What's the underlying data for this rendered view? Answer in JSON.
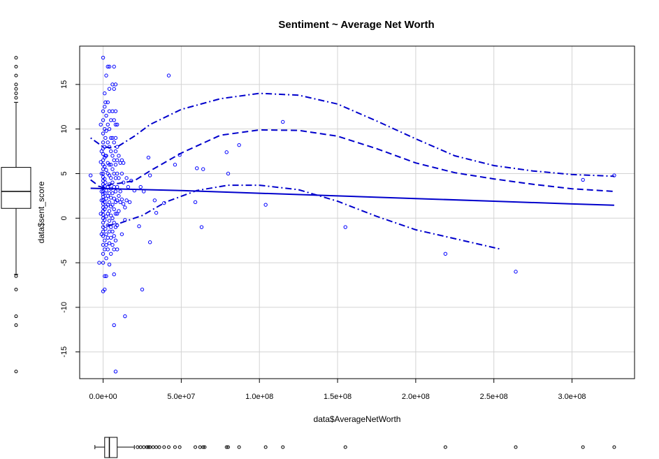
{
  "chart_data": {
    "type": "scatter",
    "title": "Sentiment ~ Average Net Worth",
    "xlabel": "data$AverageNetWorth",
    "ylabel": "data$sent_score",
    "xlim": [
      -15000000,
      340000000
    ],
    "ylim": [
      -18,
      19.3
    ],
    "grid": true,
    "x_ticks": [
      0,
      50000000,
      100000000,
      150000000,
      200000000,
      250000000,
      300000000
    ],
    "x_tick_labels": [
      "0.0e+00",
      "5.0e+07",
      "1.0e+08",
      "1.5e+08",
      "2.0e+08",
      "2.5e+08",
      "3.0e+08"
    ],
    "y_ticks": [
      -15,
      -10,
      -5,
      0,
      5,
      10,
      15
    ],
    "y_tick_labels": [
      "-15",
      "-10",
      "-5",
      "0",
      "5",
      "10",
      "15"
    ],
    "colors": {
      "points": "#0000ff",
      "lines": "#0000cc",
      "grid": "#d3d3d3",
      "box": "#000000"
    },
    "points": [
      [
        -8000000,
        4.8
      ],
      [
        -2500000,
        -5
      ],
      [
        0,
        18
      ],
      [
        0,
        12
      ],
      [
        0,
        11
      ],
      [
        0,
        9.5
      ],
      [
        0,
        8.5
      ],
      [
        0,
        7.8
      ],
      [
        0,
        7.2
      ],
      [
        0,
        6.5
      ],
      [
        0,
        6
      ],
      [
        0,
        5.5
      ],
      [
        0,
        5
      ],
      [
        0,
        4.6
      ],
      [
        0,
        4.2
      ],
      [
        0,
        3.8
      ],
      [
        0,
        3.4
      ],
      [
        0,
        3
      ],
      [
        0,
        2.7
      ],
      [
        0,
        2.4
      ],
      [
        0,
        2
      ],
      [
        0,
        1.6
      ],
      [
        0,
        1.2
      ],
      [
        0,
        0.8
      ],
      [
        0,
        0.4
      ],
      [
        0,
        0
      ],
      [
        0,
        -0.5
      ],
      [
        0,
        -1
      ],
      [
        0,
        -1.5
      ],
      [
        0,
        -2
      ],
      [
        0,
        -3
      ],
      [
        0,
        -4
      ],
      [
        0,
        -5
      ],
      [
        0,
        -8.2
      ],
      [
        -1000000,
        7.5
      ],
      [
        -1000000,
        5
      ],
      [
        -1000000,
        3
      ],
      [
        -1000000,
        2
      ],
      [
        -1000000,
        -1.8
      ],
      [
        -1500000,
        10.5
      ],
      [
        -1500000,
        6.3
      ],
      [
        -1500000,
        0.5
      ],
      [
        1000000,
        14
      ],
      [
        1000000,
        12.5
      ],
      [
        1000000,
        10
      ],
      [
        1000000,
        8
      ],
      [
        1000000,
        6.8
      ],
      [
        1000000,
        5.8
      ],
      [
        1000000,
        4.4
      ],
      [
        1000000,
        3.6
      ],
      [
        1000000,
        2.8
      ],
      [
        1000000,
        1.8
      ],
      [
        1000000,
        1
      ],
      [
        1000000,
        -0.2
      ],
      [
        1000000,
        -2.5
      ],
      [
        1000000,
        -3.5
      ],
      [
        1000000,
        -6.5
      ],
      [
        1000000,
        -8
      ],
      [
        1500000,
        13
      ],
      [
        1500000,
        9
      ],
      [
        1500000,
        7
      ],
      [
        1500000,
        4
      ],
      [
        1500000,
        -1.2
      ],
      [
        2000000,
        16
      ],
      [
        2000000,
        11.5
      ],
      [
        2000000,
        9.8
      ],
      [
        2000000,
        7
      ],
      [
        2000000,
        5.4
      ],
      [
        2000000,
        3.1
      ],
      [
        2000000,
        2.2
      ],
      [
        2000000,
        1.3
      ],
      [
        2000000,
        0.2
      ],
      [
        2000000,
        -1.8
      ],
      [
        2000000,
        -3
      ],
      [
        2000000,
        -4.5
      ],
      [
        2000000,
        -6.5
      ],
      [
        3000000,
        17
      ],
      [
        3000000,
        13
      ],
      [
        3000000,
        10.5
      ],
      [
        3000000,
        8.5
      ],
      [
        3000000,
        6.2
      ],
      [
        3000000,
        5
      ],
      [
        3000000,
        3.5
      ],
      [
        3000000,
        2.5
      ],
      [
        3000000,
        1.5
      ],
      [
        3000000,
        0.5
      ],
      [
        3000000,
        -0.8
      ],
      [
        3000000,
        -2.2
      ],
      [
        3000000,
        -3.5
      ],
      [
        4000000,
        17
      ],
      [
        4000000,
        14.5
      ],
      [
        4000000,
        12
      ],
      [
        4000000,
        10
      ],
      [
        4000000,
        8
      ],
      [
        4000000,
        6
      ],
      [
        4000000,
        4.8
      ],
      [
        4000000,
        3.8
      ],
      [
        4000000,
        2.8
      ],
      [
        4000000,
        1.8
      ],
      [
        4000000,
        0.8
      ],
      [
        4000000,
        -0.3
      ],
      [
        4000000,
        -1.5
      ],
      [
        4000000,
        -2.8
      ],
      [
        4000000,
        -5.2
      ],
      [
        5000000,
        11
      ],
      [
        5000000,
        9
      ],
      [
        5000000,
        7.5
      ],
      [
        5000000,
        6
      ],
      [
        5000000,
        4.5
      ],
      [
        5000000,
        3.3
      ],
      [
        5000000,
        2.3
      ],
      [
        5000000,
        1.3
      ],
      [
        5000000,
        0.3
      ],
      [
        5000000,
        -1
      ],
      [
        5000000,
        -2.2
      ],
      [
        5000000,
        -4
      ],
      [
        6000000,
        15
      ],
      [
        6000000,
        12
      ],
      [
        6000000,
        9
      ],
      [
        6000000,
        7
      ],
      [
        6000000,
        5.5
      ],
      [
        6000000,
        4
      ],
      [
        6000000,
        2.8
      ],
      [
        6000000,
        1.5
      ],
      [
        6000000,
        0
      ],
      [
        6000000,
        -1.5
      ],
      [
        6000000,
        -3
      ],
      [
        7000000,
        17
      ],
      [
        7000000,
        14.5
      ],
      [
        7000000,
        11
      ],
      [
        7000000,
        8.5
      ],
      [
        7000000,
        6.5
      ],
      [
        7000000,
        5
      ],
      [
        7000000,
        3.5
      ],
      [
        7000000,
        2.2
      ],
      [
        7000000,
        1
      ],
      [
        7000000,
        -0.5
      ],
      [
        7000000,
        -2
      ],
      [
        7000000,
        -3.5
      ],
      [
        7000000,
        -6.3
      ],
      [
        7000000,
        -12
      ],
      [
        8000000,
        15
      ],
      [
        8000000,
        12
      ],
      [
        8000000,
        10.5
      ],
      [
        8000000,
        9
      ],
      [
        8000000,
        7.5
      ],
      [
        8000000,
        6
      ],
      [
        8000000,
        4.5
      ],
      [
        8000000,
        3
      ],
      [
        8000000,
        1.8
      ],
      [
        8000000,
        0.5
      ],
      [
        8000000,
        -1
      ],
      [
        8000000,
        -2.5
      ],
      [
        8000000,
        -17.2
      ],
      [
        9000000,
        10.5
      ],
      [
        9000000,
        8
      ],
      [
        9000000,
        6.5
      ],
      [
        9000000,
        5
      ],
      [
        9000000,
        3.5
      ],
      [
        9000000,
        2
      ],
      [
        9000000,
        0.5
      ],
      [
        9000000,
        -0.8
      ],
      [
        9000000,
        -3.5
      ],
      [
        10000000,
        7
      ],
      [
        10000000,
        4.5
      ],
      [
        10000000,
        2.5
      ],
      [
        10000000,
        0.8
      ],
      [
        11000000,
        6.2
      ],
      [
        11000000,
        3
      ],
      [
        11000000,
        1.8
      ],
      [
        12000000,
        6.5
      ],
      [
        12000000,
        5
      ],
      [
        12000000,
        2.1
      ],
      [
        12000000,
        -1.8
      ],
      [
        13000000,
        6.2
      ],
      [
        13000000,
        4
      ],
      [
        13000000,
        1.6
      ],
      [
        14000000,
        1.2
      ],
      [
        14000000,
        -0.2
      ],
      [
        14000000,
        -11
      ],
      [
        15000000,
        4.5
      ],
      [
        15000000,
        2
      ],
      [
        16000000,
        3.5
      ],
      [
        17000000,
        1.8
      ],
      [
        18000000,
        4.2
      ],
      [
        20000000,
        3.1
      ],
      [
        23000000,
        -0.9
      ],
      [
        24000000,
        3.5
      ],
      [
        25000000,
        -8
      ],
      [
        26000000,
        3
      ],
      [
        29000000,
        6.8
      ],
      [
        30000000,
        -2.7
      ],
      [
        30000000,
        4.8
      ],
      [
        33000000,
        2
      ],
      [
        34000000,
        0.6
      ],
      [
        39000000,
        1.7
      ],
      [
        42000000,
        16
      ],
      [
        46000000,
        6
      ],
      [
        49000000,
        7.1
      ],
      [
        59000000,
        1.8
      ],
      [
        60000000,
        5.6
      ],
      [
        63000000,
        -1
      ],
      [
        64000000,
        5.5
      ],
      [
        79000000,
        7.4
      ],
      [
        80000000,
        5
      ],
      [
        87000000,
        8.2
      ],
      [
        104000000,
        1.5
      ],
      [
        115000000,
        10.8
      ],
      [
        155000000,
        -1
      ],
      [
        219000000,
        -4
      ],
      [
        264000000,
        -6
      ],
      [
        307000000,
        4.3
      ],
      [
        327000000,
        4.8
      ]
    ],
    "lines": [
      {
        "style": "solid",
        "points": [
          [
            -8000000,
            3.35
          ],
          [
            50000000,
            3.1
          ],
          [
            100000000,
            2.8
          ],
          [
            150000000,
            2.5
          ],
          [
            200000000,
            2.2
          ],
          [
            250000000,
            1.9
          ],
          [
            300000000,
            1.6
          ],
          [
            327000000,
            1.45
          ]
        ]
      },
      {
        "style": "dashed",
        "points": [
          [
            -8000000,
            4.3
          ],
          [
            -5000000,
            3.9
          ],
          [
            -3000000,
            3.6
          ],
          [
            0,
            3.45
          ],
          [
            5000000,
            3.8
          ],
          [
            10000000,
            3.9
          ],
          [
            20000000,
            4.2
          ],
          [
            30000000,
            5.3
          ],
          [
            50000000,
            7.3
          ],
          [
            75000000,
            9.3
          ],
          [
            100000000,
            9.9
          ],
          [
            125000000,
            9.85
          ],
          [
            150000000,
            9.2
          ],
          [
            175000000,
            7.8
          ],
          [
            200000000,
            6.2
          ],
          [
            225000000,
            5.1
          ],
          [
            250000000,
            4.4
          ],
          [
            275000000,
            3.8
          ],
          [
            300000000,
            3.3
          ],
          [
            327000000,
            3
          ]
        ]
      },
      {
        "style": "dotdash",
        "points": [
          [
            -8000000,
            9
          ],
          [
            -4000000,
            8.5
          ],
          [
            0,
            8
          ],
          [
            5000000,
            7.9
          ],
          [
            10000000,
            8.1
          ],
          [
            20000000,
            9.2
          ],
          [
            30000000,
            10.5
          ],
          [
            50000000,
            12.2
          ],
          [
            75000000,
            13.4
          ],
          [
            100000000,
            14
          ],
          [
            125000000,
            13.8
          ],
          [
            150000000,
            12.8
          ],
          [
            175000000,
            10.9
          ],
          [
            200000000,
            8.9
          ],
          [
            225000000,
            7
          ],
          [
            250000000,
            5.9
          ],
          [
            275000000,
            5.3
          ],
          [
            300000000,
            4.9
          ],
          [
            327000000,
            4.7
          ]
        ]
      },
      {
        "style": "dotdash",
        "points": [
          [
            0,
            -0.9
          ],
          [
            10000000,
            -0.6
          ],
          [
            25000000,
            0.3
          ],
          [
            40000000,
            1.8
          ],
          [
            60000000,
            3.1
          ],
          [
            80000000,
            3.7
          ],
          [
            100000000,
            3.7
          ],
          [
            125000000,
            3.2
          ],
          [
            150000000,
            1.9
          ],
          [
            175000000,
            0.2
          ],
          [
            200000000,
            -1.3
          ],
          [
            225000000,
            -2.3
          ],
          [
            255000000,
            -3.5
          ]
        ]
      }
    ],
    "y_boxplot": {
      "whisker_low": -6.3,
      "q1": 1.1,
      "median": 3,
      "q3": 5.7,
      "whisker_high": 13,
      "outliers": [
        18,
        17,
        16,
        15,
        14.5,
        14,
        13.5,
        -6.5,
        -8,
        -11,
        -12,
        -17.2
      ]
    },
    "x_boxplot": {
      "whisker_low": 0,
      "q1": 1000000,
      "median": 4000000,
      "q3": 9000000,
      "whisker_high": 20000000,
      "outliers": [
        22000000,
        24000000,
        26000000,
        28000000,
        29000000,
        30000000,
        32000000,
        34000000,
        36000000,
        39000000,
        42000000,
        46000000,
        49000000,
        59000000,
        62000000,
        64000000,
        65000000,
        79000000,
        80000000,
        87000000,
        104000000,
        115000000,
        155000000,
        219000000,
        264000000,
        307000000,
        327000000
      ]
    }
  }
}
